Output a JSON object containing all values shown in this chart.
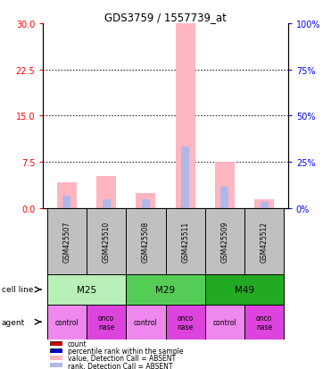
{
  "title": "GDS3759 / 1557739_at",
  "samples": [
    "GSM425507",
    "GSM425510",
    "GSM425508",
    "GSM425511",
    "GSM425509",
    "GSM425512"
  ],
  "cell_lines": [
    {
      "label": "M25",
      "span": [
        0,
        2
      ]
    },
    {
      "label": "M29",
      "span": [
        2,
        4
      ]
    },
    {
      "label": "M49",
      "span": [
        4,
        6
      ]
    }
  ],
  "agents": [
    "control",
    "onconase",
    "control",
    "onconase",
    "control",
    "onconase"
  ],
  "value_bars": [
    4.2,
    5.2,
    2.5,
    30.0,
    7.5,
    1.5
  ],
  "rank_bars": [
    2.0,
    1.5,
    1.5,
    10.0,
    3.5,
    1.0
  ],
  "ylim_left": [
    0,
    30
  ],
  "ylim_right": [
    0,
    100
  ],
  "yticks_left": [
    0,
    7.5,
    15,
    22.5,
    30
  ],
  "yticks_right": [
    0,
    25,
    50,
    75,
    100
  ],
  "value_color_absent": "#ffb6c1",
  "rank_color_absent": "#b0b8e8",
  "legend": [
    {
      "label": "count",
      "color": "#cc0000"
    },
    {
      "label": "percentile rank within the sample",
      "color": "#0000cc"
    },
    {
      "label": "value, Detection Call = ABSENT",
      "color": "#ffb6c1"
    },
    {
      "label": "rank, Detection Call = ABSENT",
      "color": "#b0b8e8"
    }
  ],
  "sample_box_color": "#c0c0c0",
  "cell_line_colors": [
    "#b8f0b8",
    "#55cc55",
    "#22aa22"
  ],
  "agent_colors": [
    "#ee88ee",
    "#dd44dd"
  ]
}
